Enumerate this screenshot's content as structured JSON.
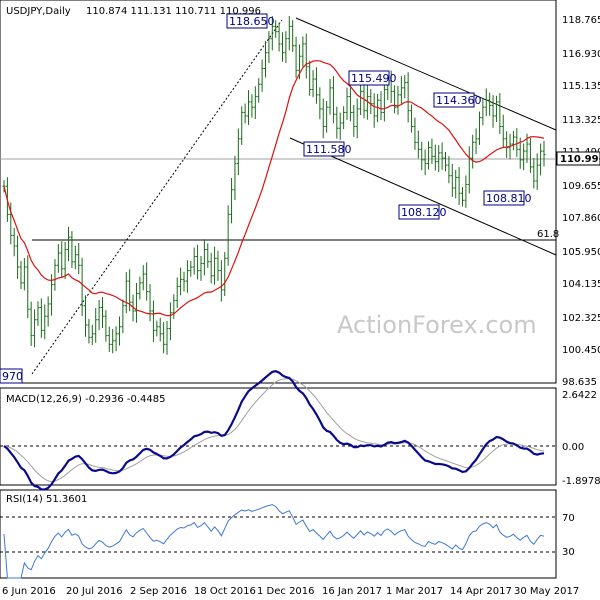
{
  "chart_data": {
    "type": "candlestick",
    "symbol_header": "USDJPY,Daily",
    "ohlc_header": "110.874 111.131 110.711 110.996",
    "last_price": "110.996",
    "watermark": "ActionForex.com",
    "price_axis_ticks": [
      "118.765",
      "116.930",
      "115.135",
      "113.325",
      "111.490",
      "109.655",
      "107.860",
      "105.950",
      "104.135",
      "102.325",
      "100.450",
      "98.635"
    ],
    "price_range": [
      98.0,
      119.8
    ],
    "x_ticks": [
      "6 Jun 2016",
      "20 Jul 2016",
      "2 Sep 2016",
      "18 Oct 2016",
      "1 Dec 2016",
      "16 Jan 2017",
      "1 Mar 2017",
      "14 Apr 2017",
      "30 May 2017"
    ],
    "price_series_closes": [
      109.2,
      107.6,
      106.4,
      105.8,
      104.6,
      103.7,
      104.6,
      102.2,
      100.7,
      101.6,
      102.3,
      101.0,
      101.8,
      102.5,
      103.6,
      104.7,
      105.4,
      104.5,
      105.6,
      106.3,
      104.9,
      105.3,
      104.7,
      102.4,
      101.3,
      100.6,
      100.8,
      101.6,
      102.3,
      101.8,
      100.7,
      100.2,
      100.4,
      100.8,
      101.2,
      102.4,
      103.8,
      102.6,
      102.1,
      103.1,
      103.7,
      104.2,
      103.2,
      102.1,
      101.0,
      101.2,
      100.8,
      100.2,
      101.1,
      102.0,
      102.7,
      103.5,
      103.9,
      103.8,
      104.4,
      104.6,
      105.2,
      104.4,
      104.8,
      105.6,
      104.9,
      104.1,
      105.1,
      104.4,
      103.3,
      105.1,
      107.6,
      109.0,
      110.5,
      111.9,
      113.4,
      113.2,
      114.0,
      113.7,
      114.3,
      115.0,
      115.9,
      116.8,
      117.6,
      118.3,
      118.0,
      117.3,
      116.8,
      117.6,
      118.3,
      117.2,
      115.8,
      116.6,
      117.3,
      116.0,
      114.7,
      115.3,
      114.4,
      113.6,
      112.6,
      113.7,
      114.8,
      113.3,
      112.5,
      112.8,
      113.4,
      114.3,
      113.4,
      112.6,
      113.6,
      114.6,
      113.5,
      114.3,
      113.9,
      113.2,
      114.1,
      113.4,
      114.7,
      115.2,
      114.6,
      113.7,
      114.4,
      114.8,
      115.1,
      113.5,
      112.6,
      111.7,
      111.3,
      110.7,
      110.5,
      111.4,
      110.9,
      110.6,
      111.1,
      110.8,
      110.4,
      109.8,
      109.1,
      109.7,
      108.8,
      108.4,
      109.3,
      110.8,
      111.7,
      111.9,
      113.1,
      113.7,
      114.1,
      113.8,
      113.2,
      114.0,
      112.6,
      111.9,
      111.4,
      111.6,
      112.0,
      111.3,
      110.7,
      111.2,
      111.6,
      110.3,
      109.5,
      110.4,
      111.2,
      111.0
    ],
    "ma_label_hidden": true,
    "annotations": [
      "118.650",
      "115.490",
      "114.360",
      "111.580",
      "108.120",
      "108.810",
      "61.8",
      "970"
    ],
    "macd": {
      "header": "MACD(12,26,9) -0.2936 -0.4485",
      "ticks": [
        "2.6422",
        "0.00",
        "-1.8978"
      ],
      "range": [
        -1.8978,
        2.6422
      ]
    },
    "rsi": {
      "header": "RSI(14) 51.3601",
      "ticks": [
        "70",
        "30"
      ],
      "range": [
        0,
        100
      ]
    },
    "grid": false
  }
}
